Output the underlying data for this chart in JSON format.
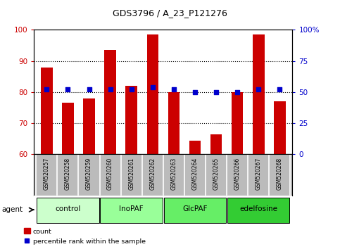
{
  "title": "GDS3796 / A_23_P121276",
  "samples": [
    "GSM520257",
    "GSM520258",
    "GSM520259",
    "GSM520260",
    "GSM520261",
    "GSM520262",
    "GSM520263",
    "GSM520264",
    "GSM520265",
    "GSM520266",
    "GSM520267",
    "GSM520268"
  ],
  "bar_values": [
    88,
    76.5,
    78,
    93.5,
    82,
    98.5,
    80,
    64.5,
    66.5,
    80,
    98.5,
    77
  ],
  "dot_values": [
    52,
    52,
    52,
    52,
    52,
    54,
    52,
    50,
    50,
    50,
    52,
    52
  ],
  "bar_color": "#cc0000",
  "dot_color": "#0000cc",
  "ylim_left": [
    60,
    100
  ],
  "ylim_right": [
    0,
    100
  ],
  "yticks_left": [
    60,
    70,
    80,
    90,
    100
  ],
  "ytick_labels_left": [
    "60",
    "70",
    "80",
    "90",
    "100"
  ],
  "yticks_right": [
    0,
    25,
    50,
    75,
    100
  ],
  "ytick_labels_right": [
    "0",
    "25",
    "50",
    "75",
    "100%"
  ],
  "groups": [
    {
      "label": "control",
      "start": 0,
      "end": 3,
      "color": "#ccffcc"
    },
    {
      "label": "InoPAF",
      "start": 3,
      "end": 6,
      "color": "#99ff99"
    },
    {
      "label": "GlcPAF",
      "start": 6,
      "end": 9,
      "color": "#66ee66"
    },
    {
      "label": "edelfosine",
      "start": 9,
      "end": 12,
      "color": "#33cc33"
    }
  ],
  "legend_count_label": "count",
  "legend_pct_label": "percentile rank within the sample",
  "agent_label": "agent",
  "bg_color": "#ffffff",
  "plot_bg": "#ffffff",
  "grid_color": "#000000",
  "tick_area_color": "#bbbbbb",
  "separator_color": "#ffffff"
}
